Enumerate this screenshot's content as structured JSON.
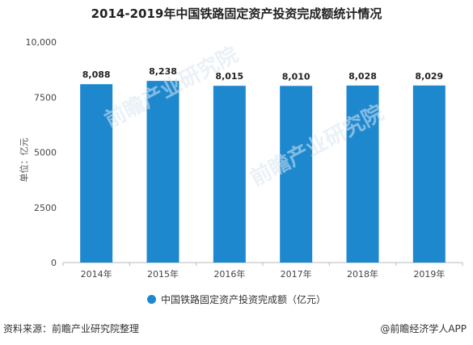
{
  "chart_data": {
    "type": "bar",
    "title": "2014-2019年中国铁路固定资产投资完成额统计情况",
    "ylabel": "单位：亿元",
    "xlabel": "",
    "categories": [
      "2014年",
      "2015年",
      "2016年",
      "2017年",
      "2018年",
      "2019年"
    ],
    "series": [
      {
        "name": "中国铁路固定资产投资完成额（亿元）",
        "values": [
          8088,
          8238,
          8015,
          8010,
          8028,
          8029
        ],
        "data_labels": [
          "8,088",
          "8,238",
          "8,015",
          "8,010",
          "8,028",
          "8,029"
        ],
        "color": "#1e88cf"
      }
    ],
    "ylim": [
      0,
      10000
    ],
    "yticks": [
      0,
      2500,
      5000,
      7500,
      10000
    ],
    "ytick_labels": [
      "0",
      "2500",
      "5000",
      "7500",
      "10,000"
    ],
    "grid": false,
    "legend_position": "bottom"
  },
  "footer": {
    "source": "资料来源：前瞻产业研究院整理",
    "credit": "@前瞻经济学人APP"
  },
  "watermark": {
    "text": "前瞻产业研究院"
  }
}
